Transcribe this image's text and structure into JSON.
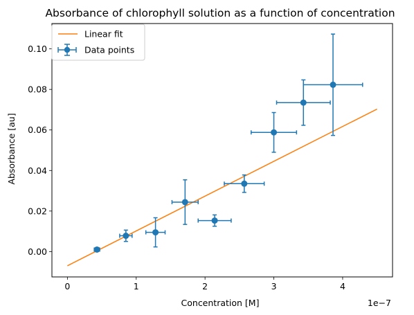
{
  "chart_data": {
    "type": "scatter",
    "title": "Absorbance of chlorophyll solution as a function of concentration",
    "xlabel": "Concentration [M]",
    "ylabel": "Absorbance [au]",
    "x_scale_label": "1e−7",
    "x_multiplier": 1e-07,
    "xlim": [
      -0.225,
      4.725
    ],
    "ylim": [
      -0.0125,
      0.1125
    ],
    "x_ticks": [
      0,
      1,
      2,
      3,
      4
    ],
    "y_ticks": [
      0.0,
      0.02,
      0.04,
      0.06,
      0.08,
      0.1
    ],
    "y_tick_labels": [
      "0.00",
      "0.02",
      "0.04",
      "0.06",
      "0.08",
      "0.10"
    ],
    "grid": false,
    "legend": {
      "placement": "top-left",
      "entries": [
        {
          "label": "Linear fit",
          "kind": "line",
          "color": "#ff7f0e"
        },
        {
          "label": "Data points",
          "kind": "errorbar",
          "color": "#1f77b4"
        }
      ]
    },
    "series": [
      {
        "name": "Data points",
        "kind": "errorbar",
        "color": "#1f77b4",
        "points": [
          {
            "x": 0.43,
            "y": 0.001,
            "xerr": 0.04,
            "yerr": 0.0008
          },
          {
            "x": 0.85,
            "y": 0.0078,
            "xerr": 0.09,
            "yerr": 0.0028
          },
          {
            "x": 1.28,
            "y": 0.0095,
            "xerr": 0.14,
            "yerr": 0.0072
          },
          {
            "x": 1.71,
            "y": 0.0244,
            "xerr": 0.19,
            "yerr": 0.011
          },
          {
            "x": 2.14,
            "y": 0.0153,
            "xerr": 0.24,
            "yerr": 0.0028
          },
          {
            "x": 2.57,
            "y": 0.0335,
            "xerr": 0.29,
            "yerr": 0.0043
          },
          {
            "x": 3.0,
            "y": 0.0588,
            "xerr": 0.33,
            "yerr": 0.0098
          },
          {
            "x": 3.43,
            "y": 0.0735,
            "xerr": 0.39,
            "yerr": 0.0112
          },
          {
            "x": 3.86,
            "y": 0.0823,
            "xerr": 0.43,
            "yerr": 0.025
          }
        ]
      },
      {
        "name": "Linear fit",
        "kind": "line",
        "color": "#ff7f0e",
        "x": [
          0,
          4.5
        ],
        "y": [
          -0.007,
          0.0703
        ]
      }
    ]
  }
}
